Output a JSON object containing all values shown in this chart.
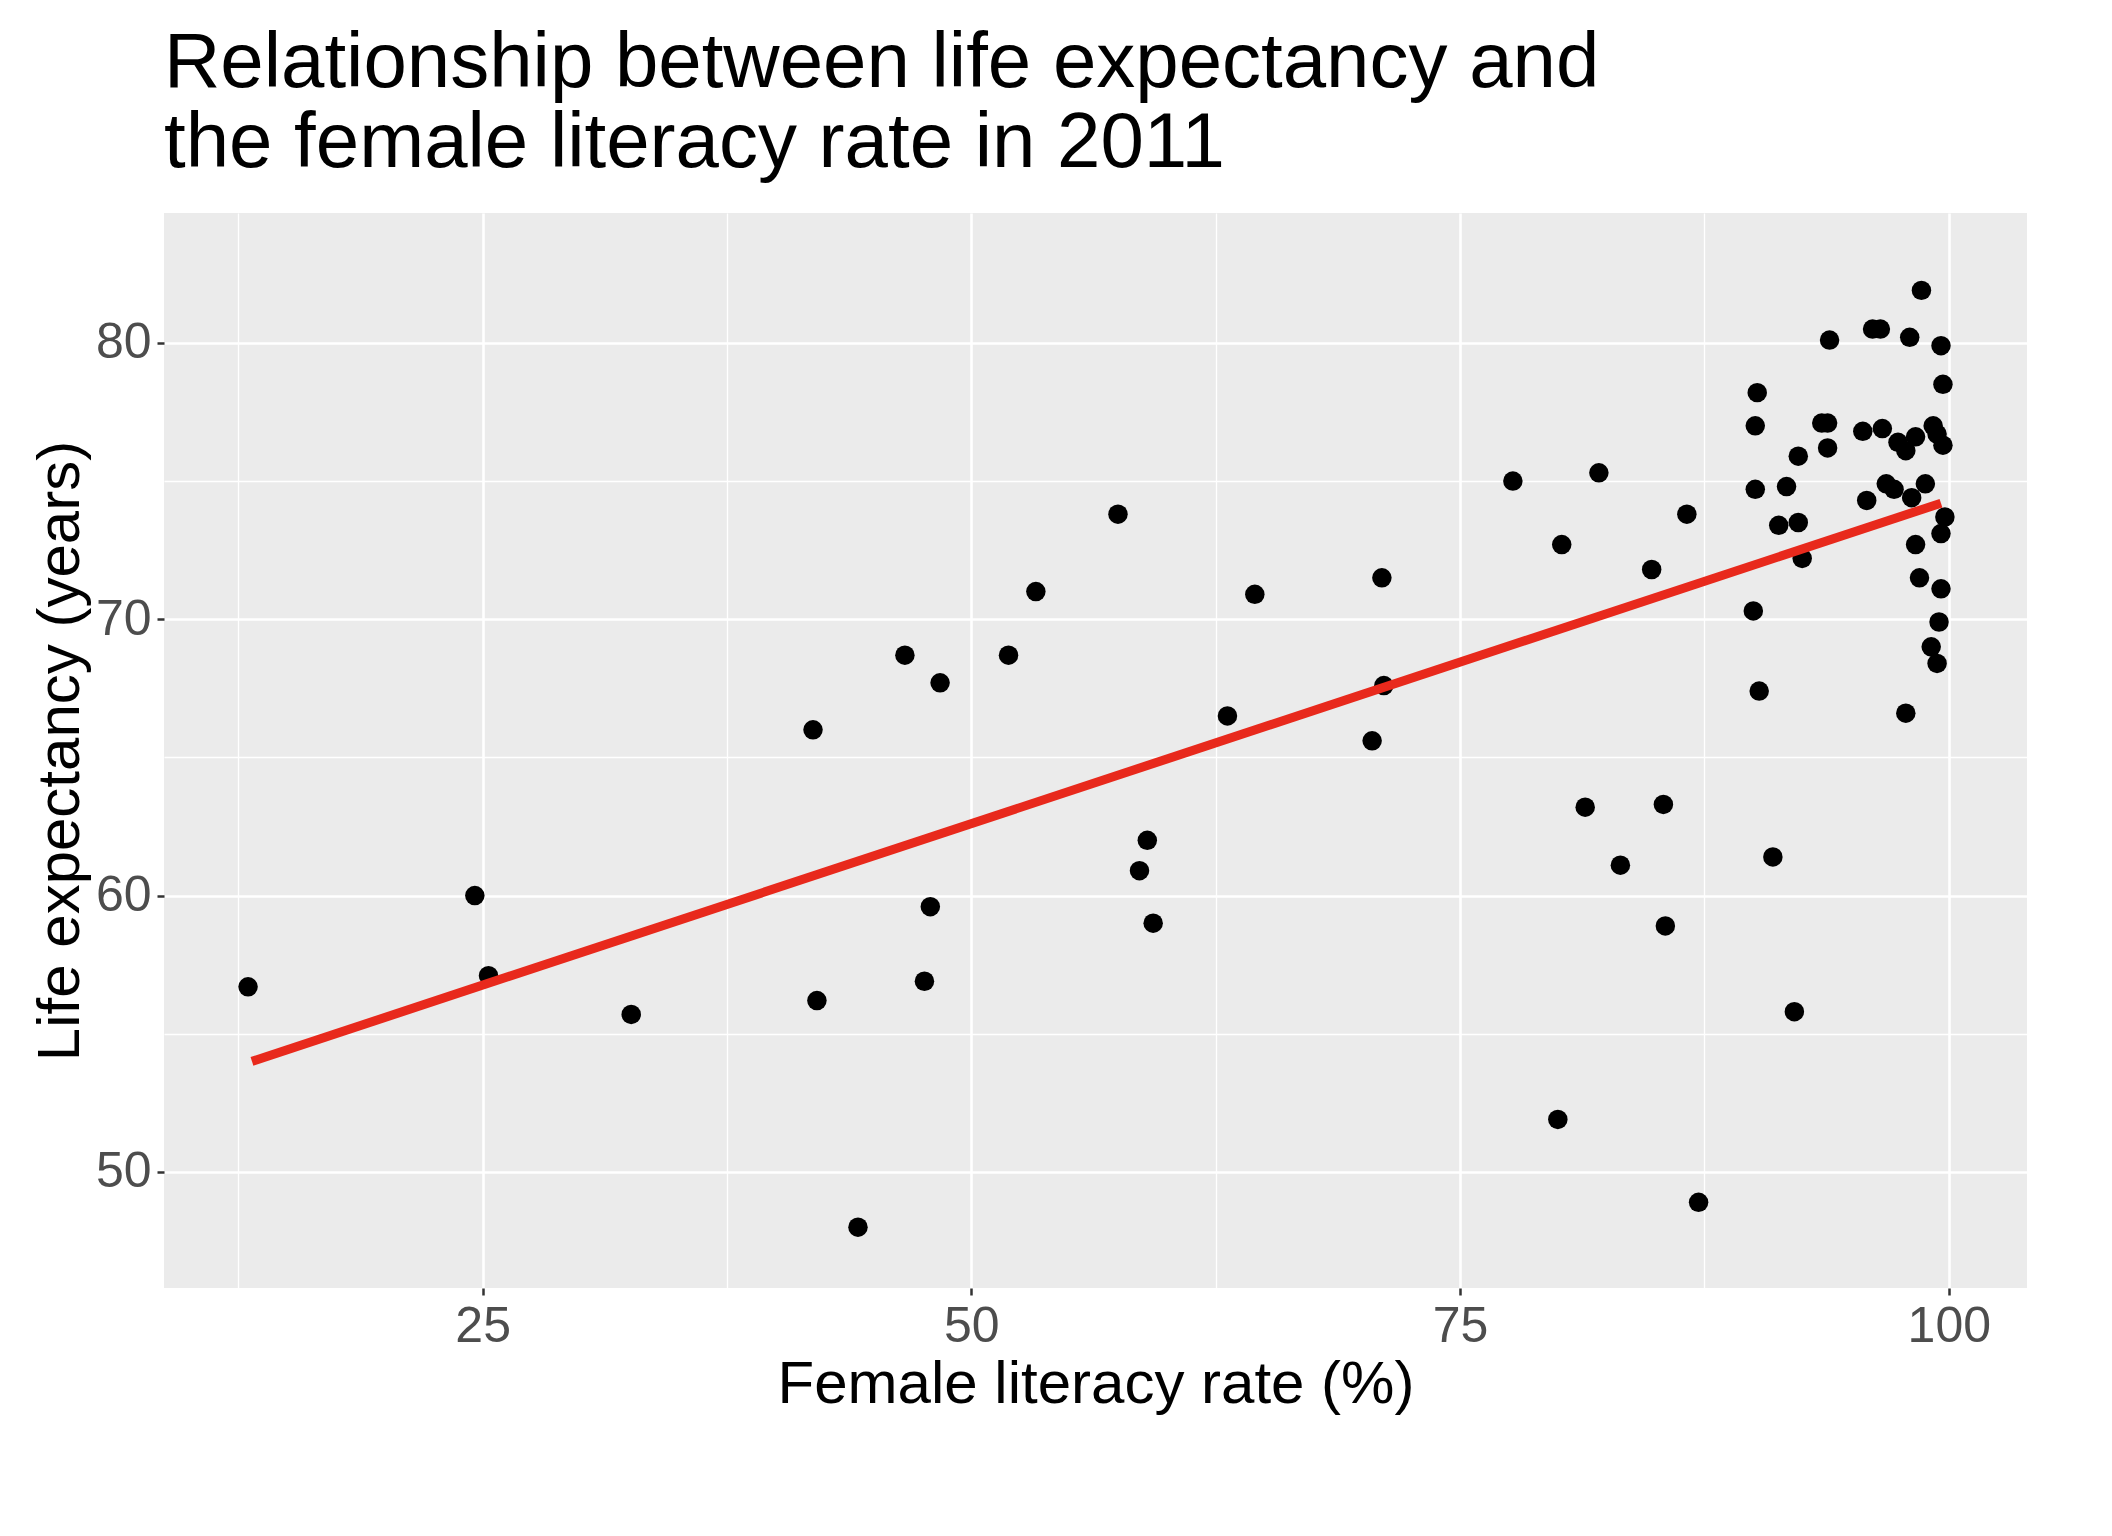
{
  "chart_data": {
    "type": "scatter",
    "title": "Relationship between life expectancy and\n the female literacy rate in 2011",
    "xlabel": "Female literacy rate (%)",
    "ylabel": "Life expectancy (years)",
    "xlim": [
      8.7,
      104.0
    ],
    "ylim": [
      45.8,
      84.7
    ],
    "xticks": [
      {
        "value": 12.5,
        "label": null
      },
      25,
      {
        "value": 37.5,
        "label": null
      },
      50,
      {
        "value": 62.5,
        "label": null
      },
      75,
      {
        "value": 87.5,
        "label": null
      },
      100
    ],
    "yticks": [
      50,
      {
        "value": 55,
        "label": null
      },
      60,
      {
        "value": 65,
        "label": null
      },
      70,
      {
        "value": 75,
        "label": null
      },
      80
    ],
    "grid": true,
    "series": [
      {
        "marker": "circle",
        "color": "#000000",
        "x": [
          13.0,
          24.6,
          25.3,
          32.6,
          41.9,
          42.1,
          44.2,
          46.6,
          47.6,
          47.9,
          48.4,
          51.9,
          53.3,
          57.5,
          58.6,
          59.0,
          59.3,
          63.1,
          64.5,
          70.5,
          71.0,
          71.1,
          77.7,
          80.0,
          80.2,
          81.4,
          82.1,
          83.2,
          84.8,
          85.4,
          85.5,
          86.6,
          87.2,
          90.0,
          90.1,
          90.1,
          90.2,
          90.3,
          91.0,
          91.3,
          91.7,
          92.1,
          92.3,
          92.3,
          92.5,
          93.5,
          93.8,
          93.8,
          93.9,
          95.6,
          95.8,
          96.1,
          96.5,
          96.6,
          96.8,
          97.2,
          97.4,
          97.8,
          97.8,
          98.0,
          98.1,
          98.3,
          98.3,
          98.5,
          98.6,
          98.8,
          99.1,
          99.2,
          99.4,
          99.4,
          99.5,
          99.6,
          99.6,
          99.6,
          99.7,
          99.7,
          99.8
        ],
        "values": [
          56.7,
          60.0,
          57.1,
          55.7,
          66.0,
          56.2,
          48.0,
          68.7,
          56.9,
          59.6,
          67.7,
          68.7,
          71.0,
          73.8,
          60.9,
          62.0,
          59.0,
          66.5,
          70.9,
          65.6,
          71.5,
          67.6,
          75.0,
          51.9,
          72.7,
          63.2,
          75.3,
          61.1,
          71.8,
          63.3,
          58.9,
          73.8,
          48.9,
          70.3,
          74.7,
          77.0,
          78.2,
          67.4,
          61.4,
          73.4,
          74.8,
          55.8,
          73.5,
          75.9,
          72.2,
          77.1,
          76.2,
          77.1,
          80.1,
          76.8,
          74.3,
          80.5,
          80.5,
          76.9,
          74.9,
          74.7,
          76.4,
          76.1,
          66.6,
          80.2,
          74.4,
          76.6,
          72.7,
          71.5,
          81.9,
          74.9,
          69.0,
          77.0,
          76.7,
          68.4,
          69.9,
          71.1,
          79.9,
          73.1,
          78.5,
          76.3,
          73.7
        ]
      },
      {
        "type": "line",
        "color": "#e8291c",
        "x": [
          13.2,
          99.6
        ],
        "values": [
          54.0,
          74.2
        ]
      }
    ]
  }
}
